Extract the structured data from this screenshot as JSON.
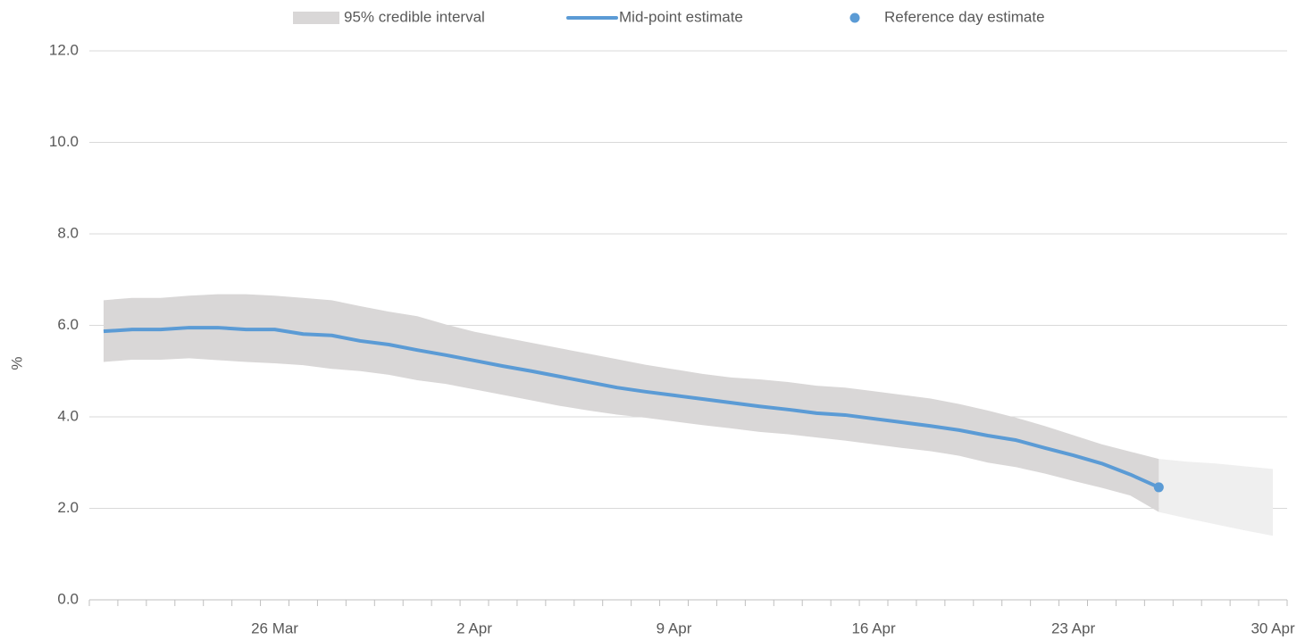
{
  "chart_data": {
    "type": "line",
    "y_label": "%",
    "ylim": [
      0,
      12
    ],
    "yticks": [
      {
        "value": 0,
        "label": "0.0"
      },
      {
        "value": 2,
        "label": "2.0"
      },
      {
        "value": 4,
        "label": "4.0"
      },
      {
        "value": 6,
        "label": "6.0"
      },
      {
        "value": 8,
        "label": "8.0"
      },
      {
        "value": 10,
        "label": "10.0"
      },
      {
        "value": 12,
        "label": "12.0"
      }
    ],
    "grid": true,
    "legend": "top",
    "categories": [
      null,
      null,
      null,
      null,
      null,
      null,
      "26 Mar",
      null,
      null,
      null,
      null,
      null,
      null,
      "2 Apr",
      null,
      null,
      null,
      null,
      null,
      null,
      "9 Apr",
      null,
      null,
      null,
      null,
      null,
      null,
      "16 Apr",
      null,
      null,
      null,
      null,
      null,
      null,
      "23 Apr",
      null,
      null,
      null,
      null,
      null,
      null,
      "30 Apr"
    ],
    "series": [
      {
        "name": "95% credible interval",
        "kind": "band",
        "color": "#d9d7d7",
        "lower": [
          5.2,
          5.25,
          5.25,
          5.28,
          5.24,
          5.2,
          5.17,
          5.13,
          5.05,
          5.0,
          4.92,
          4.8,
          4.72,
          4.6,
          4.48,
          4.36,
          4.24,
          4.14,
          4.05,
          3.98,
          3.9,
          3.82,
          3.75,
          3.67,
          3.62,
          3.55,
          3.48,
          3.4,
          3.32,
          3.25,
          3.15,
          3.0,
          2.9,
          2.76,
          2.6,
          2.45,
          2.28,
          1.92,
          null,
          null,
          null,
          null
        ],
        "upper": [
          6.55,
          6.6,
          6.6,
          6.65,
          6.68,
          6.68,
          6.65,
          6.6,
          6.55,
          6.42,
          6.3,
          6.2,
          6.02,
          5.86,
          5.74,
          5.62,
          5.5,
          5.38,
          5.26,
          5.14,
          5.04,
          4.94,
          4.86,
          4.82,
          4.76,
          4.68,
          4.64,
          4.56,
          4.48,
          4.4,
          4.28,
          4.14,
          3.98,
          3.8,
          3.6,
          3.4,
          3.24,
          3.08,
          null,
          null,
          null,
          null
        ]
      },
      {
        "name": "Mid-point estimate",
        "kind": "line",
        "color": "#5b9bd5",
        "values": [
          5.87,
          5.91,
          5.91,
          5.95,
          5.95,
          5.91,
          5.91,
          5.81,
          5.78,
          5.66,
          5.58,
          5.46,
          5.35,
          5.23,
          5.11,
          5.0,
          4.88,
          4.76,
          4.64,
          4.55,
          4.47,
          4.39,
          4.31,
          4.23,
          4.16,
          4.08,
          4.04,
          3.96,
          3.88,
          3.8,
          3.71,
          3.59,
          3.49,
          3.32,
          3.16,
          2.98,
          2.74,
          2.46,
          null,
          null,
          null,
          null
        ]
      },
      {
        "name": "Reference day estimate",
        "kind": "point",
        "color": "#5b9bd5",
        "values": [
          null,
          null,
          null,
          null,
          null,
          null,
          null,
          null,
          null,
          null,
          null,
          null,
          null,
          null,
          null,
          null,
          null,
          null,
          null,
          null,
          null,
          null,
          null,
          null,
          null,
          null,
          null,
          null,
          null,
          null,
          null,
          null,
          null,
          null,
          null,
          null,
          null,
          2.46,
          null,
          null,
          null,
          null
        ]
      }
    ],
    "projection_band": {
      "color": "#efefef",
      "lower": [
        null,
        null,
        null,
        null,
        null,
        null,
        null,
        null,
        null,
        null,
        null,
        null,
        null,
        null,
        null,
        null,
        null,
        null,
        null,
        null,
        null,
        null,
        null,
        null,
        null,
        null,
        null,
        null,
        null,
        null,
        null,
        null,
        null,
        null,
        null,
        null,
        null,
        1.92,
        1.78,
        1.65,
        1.52,
        1.4
      ],
      "upper": [
        null,
        null,
        null,
        null,
        null,
        null,
        null,
        null,
        null,
        null,
        null,
        null,
        null,
        null,
        null,
        null,
        null,
        null,
        null,
        null,
        null,
        null,
        null,
        null,
        null,
        null,
        null,
        null,
        null,
        null,
        null,
        null,
        null,
        null,
        null,
        null,
        null,
        3.08,
        3.02,
        2.98,
        2.92,
        2.86
      ]
    }
  }
}
